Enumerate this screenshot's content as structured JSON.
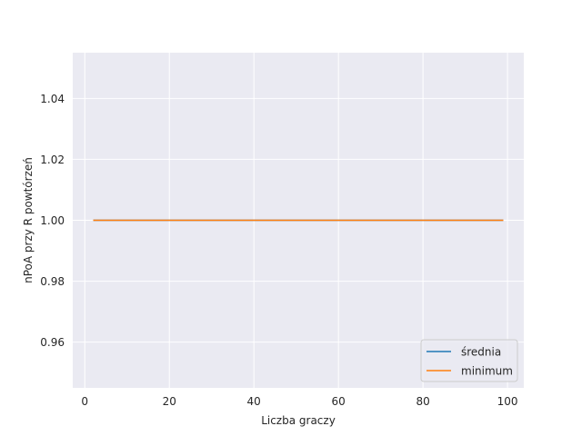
{
  "chart_data": {
    "type": "line",
    "title": "",
    "xlabel": "Liczba graczy",
    "ylabel": "nPoA przy R powtórzeń",
    "xlim": [
      -2.85,
      103.85
    ],
    "ylim": [
      0.945,
      1.055
    ],
    "xticks": [
      0,
      20,
      40,
      60,
      80,
      100
    ],
    "xtick_labels": [
      "0",
      "20",
      "40",
      "60",
      "80",
      "100"
    ],
    "yticks": [
      0.96,
      0.98,
      1.0,
      1.02,
      1.04
    ],
    "ytick_labels": [
      "0.96",
      "0.98",
      "1.00",
      "1.02",
      "1.04"
    ],
    "grid": true,
    "legend_position": "lower-right",
    "series": [
      {
        "name": "średnia",
        "color": "#1f77b4",
        "x": [
          2,
          99
        ],
        "y": [
          1.0,
          1.0
        ]
      },
      {
        "name": "minimum",
        "color": "#ff7f0e",
        "x": [
          2,
          99
        ],
        "y": [
          1.0,
          1.0
        ]
      }
    ],
    "colors": {
      "plot_background": "#eaeaf2",
      "grid": "#ffffff",
      "text": "#262626"
    }
  }
}
